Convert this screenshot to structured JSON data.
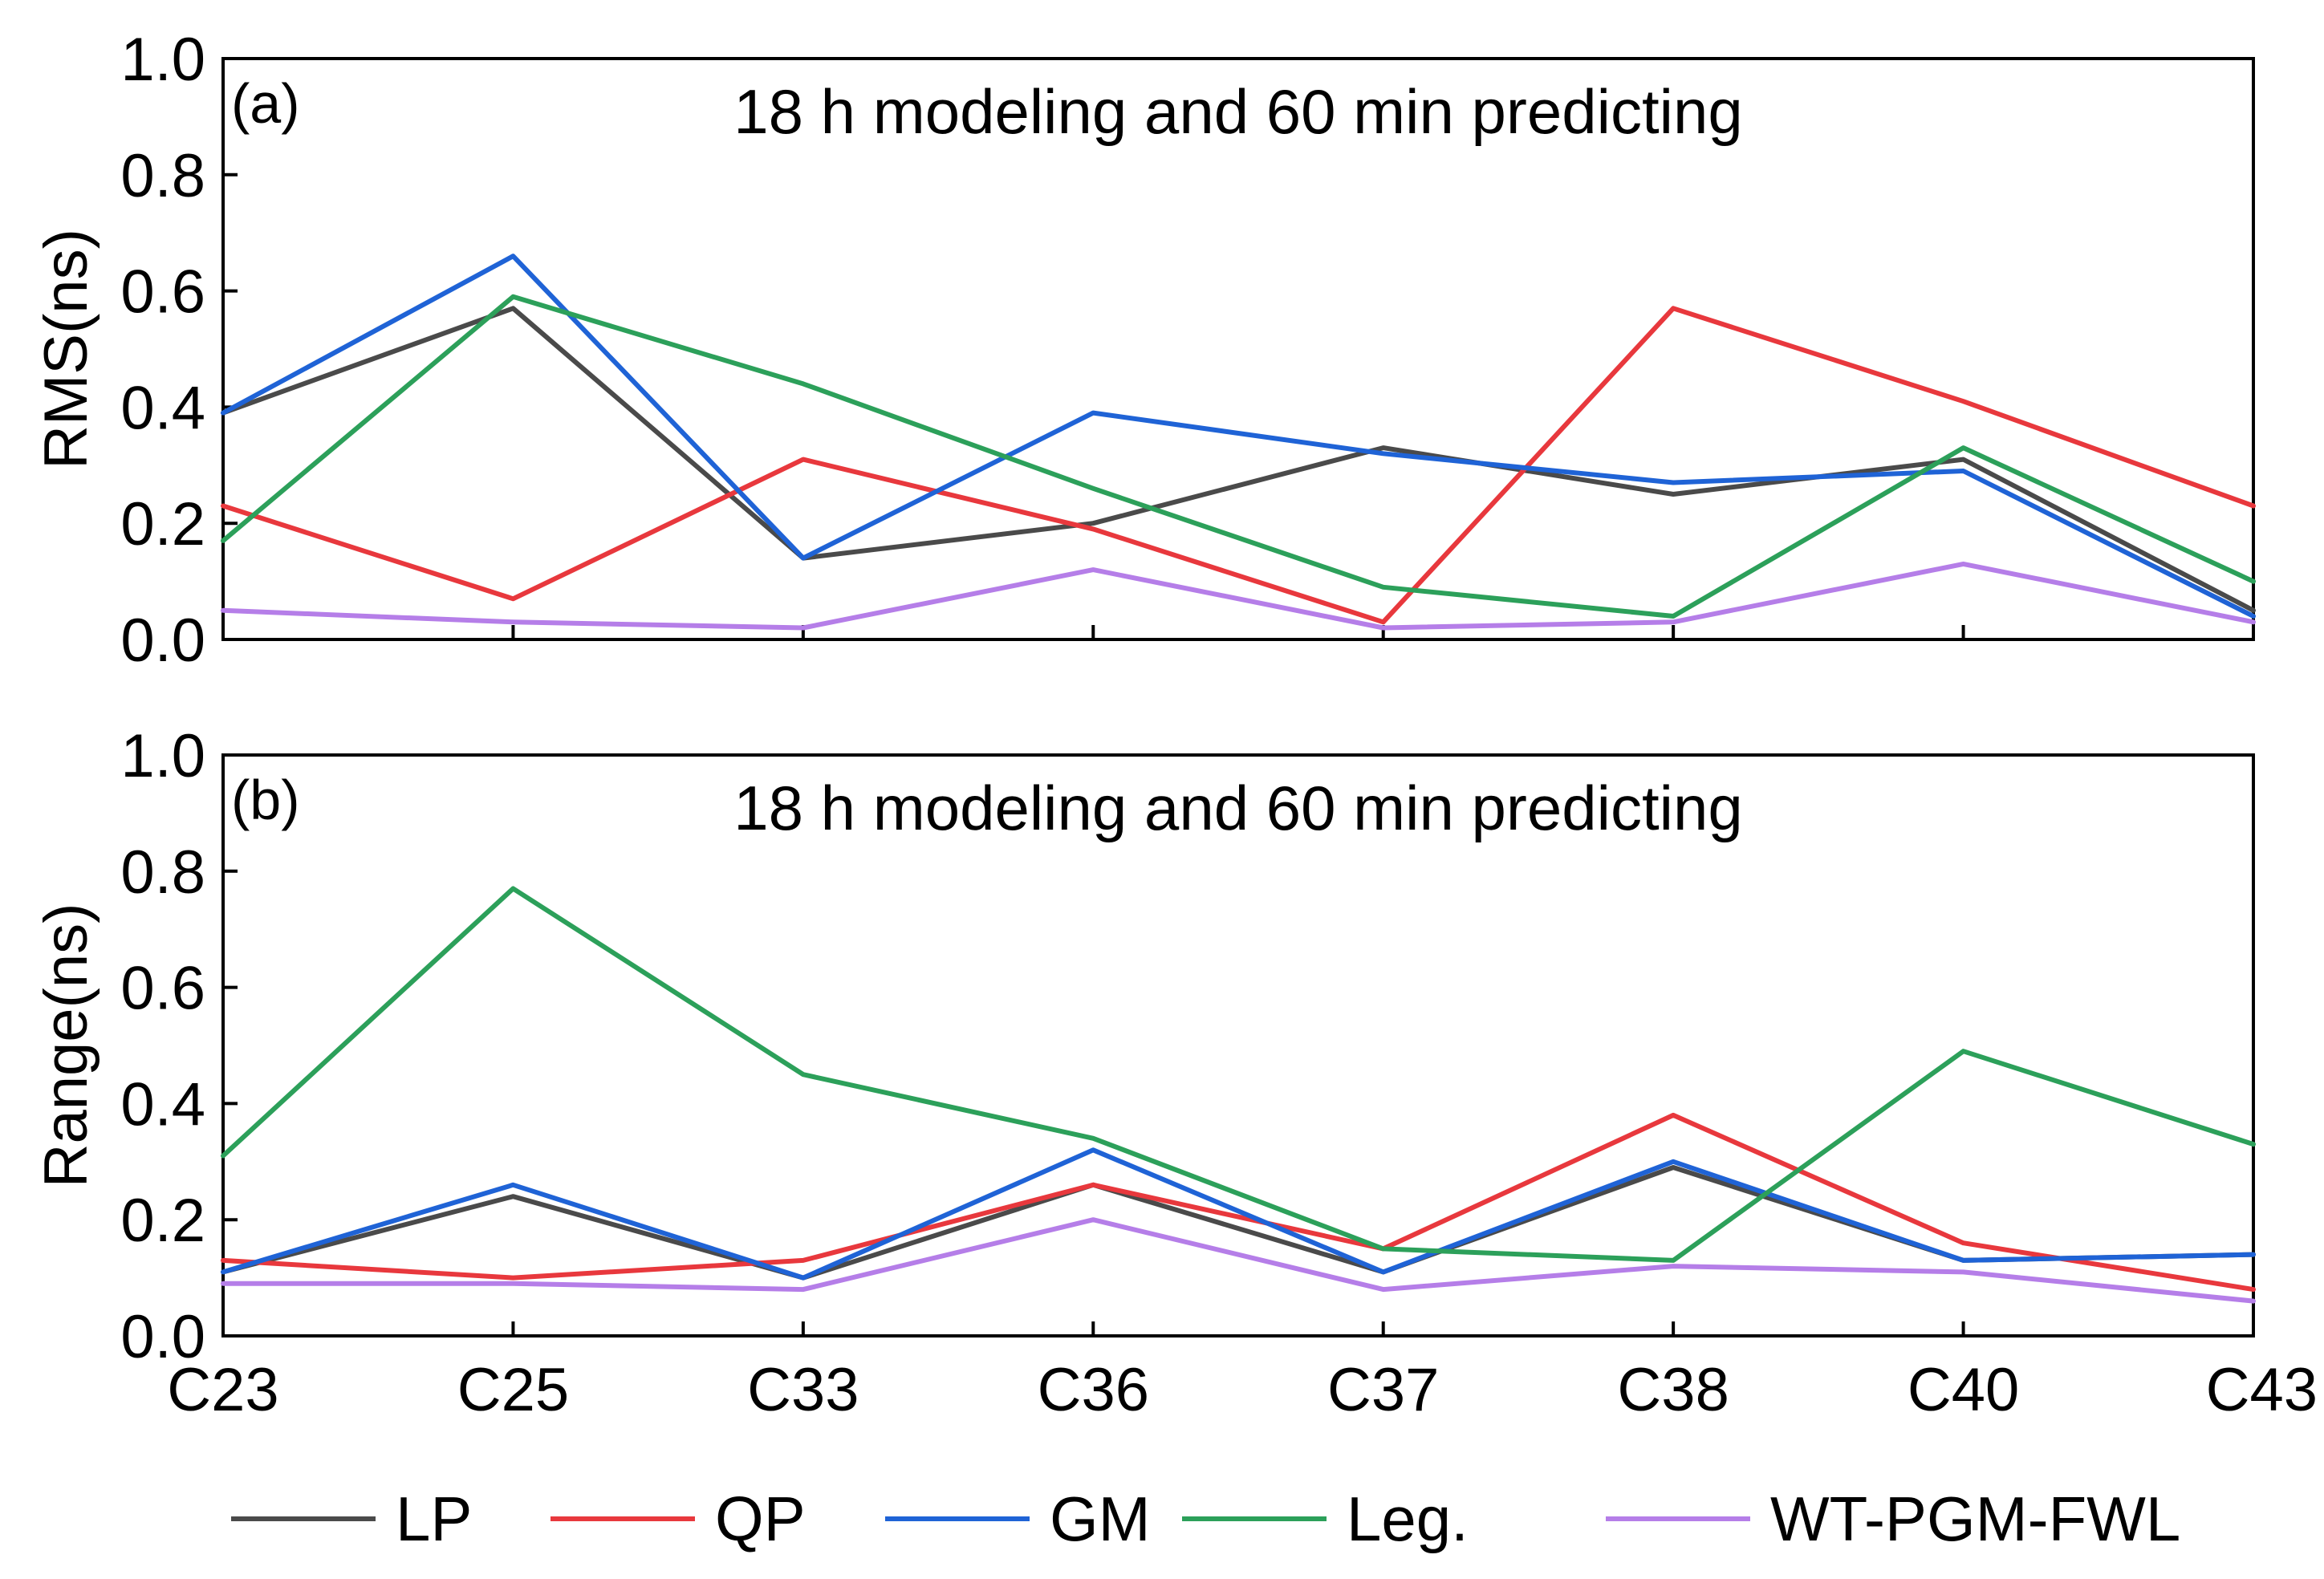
{
  "chart_data": [
    {
      "type": "line",
      "panel": "(a)",
      "title": "18 h modeling and 60 min predicting",
      "xlabel": "",
      "ylabel": "RMS(ns)",
      "ylim": [
        0,
        1.0
      ],
      "yticks": [
        "0.0",
        "0.2",
        "0.4",
        "0.6",
        "0.8",
        "1.0"
      ],
      "categories": [
        "C23",
        "C25",
        "C33",
        "C36",
        "C37",
        "C38",
        "C40",
        "C43"
      ],
      "series": [
        {
          "name": "LP",
          "color": "#4a4a4a",
          "values": [
            0.39,
            0.57,
            0.14,
            0.2,
            0.33,
            0.25,
            0.31,
            0.05
          ]
        },
        {
          "name": "QP",
          "color": "#e8383d",
          "values": [
            0.23,
            0.07,
            0.31,
            0.19,
            0.03,
            0.57,
            0.41,
            0.23
          ]
        },
        {
          "name": "GM",
          "color": "#1f63d6",
          "values": [
            0.39,
            0.66,
            0.14,
            0.39,
            0.32,
            0.27,
            0.29,
            0.04
          ]
        },
        {
          "name": "Leg.",
          "color": "#2ca05a",
          "values": [
            0.17,
            0.59,
            0.44,
            0.26,
            0.09,
            0.04,
            0.33,
            0.1
          ]
        },
        {
          "name": "WT-PGM-FWL",
          "color": "#b57ee8",
          "values": [
            0.05,
            0.03,
            0.02,
            0.12,
            0.02,
            0.03,
            0.13,
            0.03
          ]
        }
      ]
    },
    {
      "type": "line",
      "panel": "(b)",
      "title": "18 h modeling and 60 min predicting",
      "xlabel": "",
      "ylabel": "Range(ns)",
      "ylim": [
        0,
        1.0
      ],
      "yticks": [
        "0.0",
        "0.2",
        "0.4",
        "0.6",
        "0.8",
        "1.0"
      ],
      "categories": [
        "C23",
        "C25",
        "C33",
        "C36",
        "C37",
        "C38",
        "C40",
        "C43"
      ],
      "series": [
        {
          "name": "LP",
          "color": "#4a4a4a",
          "values": [
            0.11,
            0.24,
            0.1,
            0.26,
            0.11,
            0.29,
            0.13,
            0.14
          ]
        },
        {
          "name": "QP",
          "color": "#e8383d",
          "values": [
            0.13,
            0.1,
            0.13,
            0.26,
            0.15,
            0.38,
            0.16,
            0.08
          ]
        },
        {
          "name": "GM",
          "color": "#1f63d6",
          "values": [
            0.11,
            0.26,
            0.1,
            0.32,
            0.11,
            0.3,
            0.13,
            0.14
          ]
        },
        {
          "name": "Leg.",
          "color": "#2ca05a",
          "values": [
            0.31,
            0.77,
            0.45,
            0.34,
            0.15,
            0.13,
            0.49,
            0.33
          ]
        },
        {
          "name": "WT-PGM-FWL",
          "color": "#b57ee8",
          "values": [
            0.09,
            0.09,
            0.08,
            0.2,
            0.08,
            0.12,
            0.11,
            0.06
          ]
        }
      ]
    }
  ],
  "legend": [
    {
      "name": "LP",
      "color": "#4a4a4a"
    },
    {
      "name": "QP",
      "color": "#e8383d"
    },
    {
      "name": "GM",
      "color": "#1f63d6"
    },
    {
      "name": "Leg.",
      "color": "#2ca05a"
    },
    {
      "name": "WT-PGM-FWL",
      "color": "#b57ee8"
    }
  ]
}
